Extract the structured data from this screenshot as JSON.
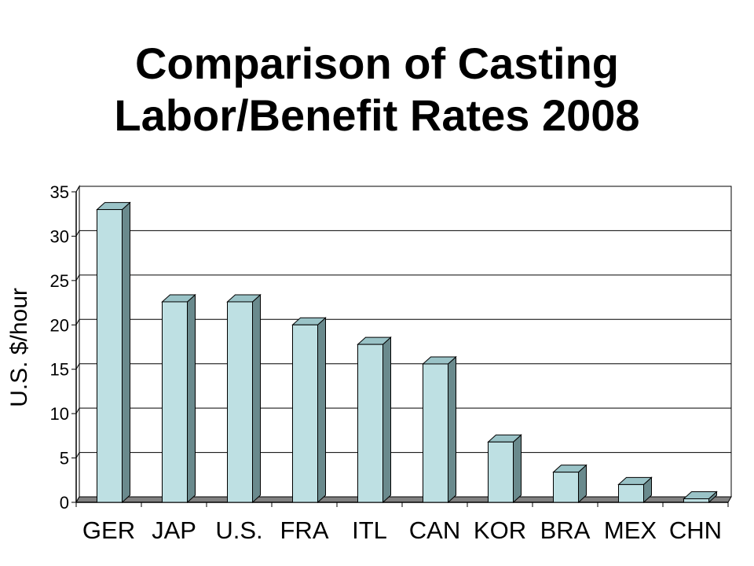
{
  "chart_data": {
    "type": "bar",
    "title_line1": "Comparison of Casting",
    "title_line2": "Labor/Benefit Rates 2008",
    "ylabel": "U.S. $/hour",
    "xlabel": "",
    "categories": [
      "GER",
      "JAP",
      "U.S.",
      "FRA",
      "ITL",
      "CAN",
      "KOR",
      "BRA",
      "MEX",
      "CHN"
    ],
    "values": [
      33,
      22.6,
      22.6,
      20,
      17.8,
      15.6,
      6.8,
      3.4,
      2,
      0.4
    ],
    "ylim": [
      0,
      35
    ],
    "yticks": [
      0,
      5,
      10,
      15,
      20,
      25,
      30,
      35
    ],
    "grid": true,
    "bar_style": "3d",
    "colors": {
      "bar_front": "#BEE0E3",
      "bar_top": "#9AC3C7",
      "bar_side": "#6A8A8D",
      "floor": "#808080",
      "gridline": "#000000"
    }
  }
}
